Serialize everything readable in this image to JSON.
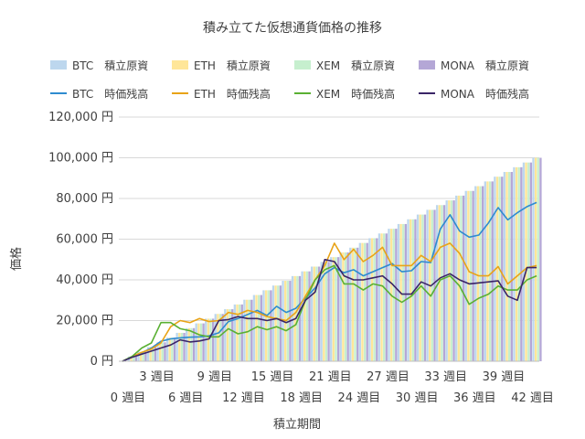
{
  "chart_data": {
    "type": "bar+line",
    "title": "積み立てた仮想通貨価格の推移",
    "xlabel": "積立期間",
    "ylabel": "価格",
    "ylim": [
      0,
      120000
    ],
    "yticks": [
      "0 円",
      "20,000 円",
      "40,000 円",
      "60,000 円",
      "80,000 円",
      "100,000 円",
      "120,000 円"
    ],
    "ytick_values": [
      0,
      20000,
      40000,
      60000,
      80000,
      100000,
      120000
    ],
    "xtick_labels": [
      "0 週目",
      "3 週目",
      "6 週目",
      "9 週目",
      "12 週目",
      "15 週目",
      "18 週目",
      "21 週目",
      "24 週目",
      "27 週目",
      "30 週目",
      "33 週目",
      "36 週目",
      "39 週目",
      "42 週目"
    ],
    "xtick_weeks": [
      0,
      3,
      6,
      9,
      12,
      15,
      18,
      21,
      24,
      27,
      30,
      33,
      36,
      39,
      42
    ],
    "weeks": [
      0,
      1,
      2,
      3,
      4,
      5,
      6,
      7,
      8,
      9,
      10,
      11,
      12,
      13,
      14,
      15,
      16,
      17,
      18,
      19,
      20,
      21,
      22,
      23,
      24,
      25,
      26,
      27,
      28,
      29,
      30,
      31,
      32,
      33,
      34,
      35,
      36,
      37,
      38,
      39,
      40,
      41,
      42,
      43
    ],
    "grid": true,
    "legend_position": "top",
    "principal_series": [
      {
        "name": "BTC　積立原資",
        "color": "#bdd7ee"
      },
      {
        "name": "ETH　積立原資",
        "color": "#ffe699"
      },
      {
        "name": "XEM　積立原資",
        "color": "#c6efce"
      },
      {
        "name": "MONA　積立原資",
        "color": "#b4a7d6"
      }
    ],
    "principal_per_week": 2325.58,
    "market_series": [
      {
        "name": "BTC　時価残高",
        "color": "#2e8bd0",
        "values": [
          0,
          2200,
          4200,
          6500,
          9800,
          11000,
          11500,
          11800,
          12000,
          12500,
          14000,
          19500,
          21000,
          23000,
          25000,
          22500,
          27000,
          24000,
          26000,
          31000,
          36000,
          43000,
          46000,
          43500,
          45000,
          42000,
          44000,
          46000,
          48000,
          44000,
          44500,
          49000,
          48500,
          65000,
          72000,
          64000,
          61000,
          62000,
          68000,
          75500,
          69500,
          73000,
          76000,
          78000
        ]
      },
      {
        "name": "ETH　時価残高",
        "color": "#e8a317",
        "values": [
          0,
          2300,
          4400,
          6000,
          9000,
          17000,
          20000,
          19000,
          21000,
          19500,
          20000,
          24000,
          23000,
          25000,
          24000,
          22000,
          21000,
          20000,
          24000,
          32000,
          40000,
          47000,
          58000,
          50000,
          55000,
          49000,
          52000,
          56000,
          47000,
          47000,
          47000,
          52000,
          49000,
          56000,
          58000,
          53000,
          44000,
          42000,
          42000,
          46500,
          38000,
          42000,
          46000,
          47000
        ]
      },
      {
        "name": "XEM　時価残高",
        "color": "#5ab033",
        "values": [
          0,
          2400,
          6500,
          9000,
          19000,
          19000,
          16000,
          15000,
          13000,
          12000,
          12000,
          16000,
          13500,
          14500,
          17000,
          15500,
          17000,
          15000,
          18000,
          30000,
          40000,
          45000,
          47000,
          38000,
          38000,
          35000,
          38000,
          37000,
          32000,
          29000,
          32000,
          37000,
          32000,
          40000,
          42000,
          37000,
          28000,
          31000,
          33000,
          37000,
          35000,
          35000,
          40000,
          42000
        ]
      },
      {
        "name": "MONA　時価残高",
        "color": "#3a2567",
        "values": [
          0,
          2000,
          3500,
          5000,
          6500,
          8000,
          10500,
          9500,
          10000,
          11000,
          20000,
          20500,
          22000,
          21000,
          21000,
          20000,
          21000,
          19000,
          21000,
          30000,
          34000,
          50000,
          49000,
          42000,
          40000,
          40000,
          41000,
          42000,
          38000,
          33000,
          33000,
          39000,
          37000,
          41000,
          43000,
          40000,
          38000,
          38500,
          39000,
          39500,
          32000,
          30000,
          46000,
          46000
        ]
      }
    ]
  }
}
